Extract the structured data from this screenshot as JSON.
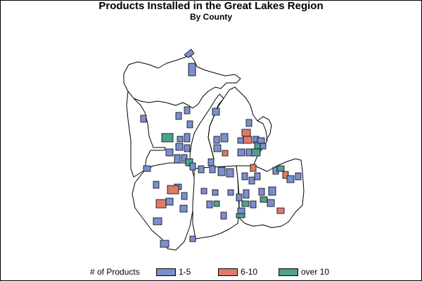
{
  "title": "Products Installed in the Great Lakes Region",
  "subtitle": "By County",
  "legend": {
    "title": "# of Products",
    "items": [
      {
        "label": "1-5",
        "color": "#7b8fcf"
      },
      {
        "label": "6-10",
        "color": "#e07a6a"
      },
      {
        "label": "over 10",
        "color": "#4fa08f"
      }
    ]
  },
  "map": {
    "region": "Great Lakes (Michigan, Indiana, Ohio)",
    "background": "#ffffff",
    "outline_color": "#000000"
  }
}
